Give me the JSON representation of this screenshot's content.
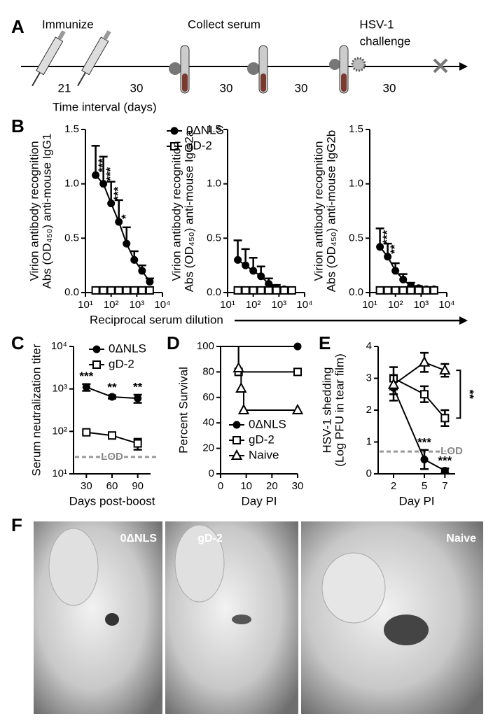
{
  "figure": {
    "panel_letters": [
      "A",
      "B",
      "C",
      "D",
      "E",
      "F"
    ],
    "reciprocal_label": "Reciprocal serum dilution"
  },
  "timeline": {
    "steps": [
      "Immunize",
      "Collect serum"
    ],
    "challenge": [
      "HSV-1",
      "challenge"
    ],
    "intervals": [
      21,
      30,
      30,
      30,
      30
    ],
    "axis_label": "Time interval (days)"
  },
  "chart_data": [
    {
      "type": "line",
      "xlog": true,
      "x": [
        25,
        50,
        100,
        200,
        400,
        800,
        1600,
        3200
      ],
      "xlim": [
        10,
        10000
      ],
      "xticks": [
        {
          "value": 10,
          "label": "10¹"
        },
        {
          "value": 100,
          "label": "10²"
        },
        {
          "value": 1000,
          "label": "10³"
        },
        {
          "value": 10000,
          "label": "10⁴"
        }
      ],
      "ylim": [
        0,
        1.5
      ],
      "yticks": [
        {
          "value": 0,
          "label": "0.0"
        },
        0.5,
        {
          "value": 1,
          "label": "1.0"
        },
        1.5
      ],
      "ylabel": [
        "Virion antibody recognition",
        "Abs (OD₄₅₀) anti-mouse IgG1"
      ],
      "legend": "top-right",
      "error_style": "up",
      "series": [
        {
          "name": "0ΔNLS",
          "marker": "circle",
          "color": "#000000",
          "values": [
            1.08,
            1.0,
            0.82,
            0.65,
            0.45,
            0.3,
            0.2,
            0.1
          ],
          "errors": [
            0.27,
            0.25,
            0.2,
            0.2,
            0.15,
            0.08,
            0.05,
            0.03
          ],
          "stars": [
            "***",
            "***",
            "***",
            "*",
            null,
            null,
            null,
            null
          ]
        },
        {
          "name": "gD-2",
          "marker": "square",
          "color": "#000000",
          "values": [
            0.02,
            0.02,
            0.02,
            0.02,
            0.02,
            0.02,
            0.02,
            0.02
          ]
        }
      ]
    },
    {
      "type": "line",
      "xlog": true,
      "x": [
        25,
        50,
        100,
        200,
        400,
        800,
        1600,
        3200
      ],
      "xlim": [
        10,
        10000
      ],
      "xticks": [
        {
          "value": 10,
          "label": "10¹"
        },
        {
          "value": 100,
          "label": "10²"
        },
        {
          "value": 1000,
          "label": "10³"
        },
        {
          "value": 10000,
          "label": "10⁴"
        }
      ],
      "ylim": [
        0,
        1.5
      ],
      "yticks": [
        {
          "value": 0,
          "label": "0.0"
        },
        0.5,
        {
          "value": 1,
          "label": "1.0"
        },
        1.5
      ],
      "ylabel": [
        "Virion antibody recognition",
        "Abs (OD₄₅₀) anti-mouse IgG2a"
      ],
      "error_style": "up",
      "series": [
        {
          "marker": "circle",
          "color": "#000000",
          "values": [
            0.3,
            0.25,
            0.2,
            0.15,
            0.08,
            0.04,
            0.03,
            0.02
          ],
          "errors": [
            0.18,
            0.15,
            0.12,
            0.09,
            0.05,
            0.03,
            0.02,
            0.01
          ]
        },
        {
          "marker": "square",
          "color": "#000000",
          "values": [
            0.02,
            0.02,
            0.02,
            0.02,
            0.02,
            0.02,
            0.02,
            0.02
          ]
        }
      ]
    },
    {
      "type": "line",
      "xlog": true,
      "x": [
        25,
        50,
        100,
        200,
        400,
        800,
        1600,
        3200
      ],
      "xlim": [
        10,
        10000
      ],
      "xticks": [
        {
          "value": 10,
          "label": "10¹"
        },
        {
          "value": 100,
          "label": "10²"
        },
        {
          "value": 1000,
          "label": "10³"
        },
        {
          "value": 10000,
          "label": "10⁴"
        }
      ],
      "ylim": [
        0,
        1.5
      ],
      "yticks": [
        {
          "value": 0,
          "label": "0.0"
        },
        0.5,
        {
          "value": 1,
          "label": "1.0"
        },
        1.5
      ],
      "ylabel": [
        "Virion antibody recognition",
        "Abs (OD₄₅₀) anti-mouse IgG2b"
      ],
      "error_style": "up",
      "series": [
        {
          "marker": "circle",
          "color": "#000000",
          "values": [
            0.42,
            0.33,
            0.2,
            0.12,
            0.06,
            0.04,
            0.03,
            0.03
          ],
          "errors": [
            0.17,
            0.12,
            0.07,
            0.05,
            0.03,
            0.02,
            0.01,
            0.01
          ],
          "stars": [
            "***",
            "**",
            null,
            null,
            null,
            null,
            null,
            null
          ]
        },
        {
          "marker": "square",
          "color": "#000000",
          "values": [
            0.02,
            0.02,
            0.02,
            0.02,
            0.02,
            0.02,
            0.02,
            0.02
          ]
        }
      ]
    },
    {
      "type": "line",
      "ylog": true,
      "x": [
        30,
        60,
        90
      ],
      "xlim": [
        15,
        105
      ],
      "xticks": [
        30,
        60,
        90
      ],
      "ylim": [
        10,
        10000
      ],
      "yticks": [
        {
          "value": 10,
          "label": "10¹"
        },
        {
          "value": 100,
          "label": "10²"
        },
        {
          "value": 1000,
          "label": "10³"
        },
        {
          "value": 10000,
          "label": "10⁴"
        }
      ],
      "ylabel": [
        "Serum neutralization titer"
      ],
      "xlabel": "Days post-boost",
      "legend": "top-left",
      "lod": 25,
      "lod_label": "LOD",
      "error_style": "both",
      "series": [
        {
          "name": "0ΔNLS",
          "marker": "circle",
          "color": "#000000",
          "values": [
            1100,
            650,
            600
          ],
          "errors": [
            200,
            60,
            130
          ],
          "stars": [
            "***",
            "**",
            "**"
          ]
        },
        {
          "name": "gD-2",
          "marker": "square",
          "color": "#000000",
          "values": [
            95,
            80,
            52
          ],
          "errors": [
            8,
            10,
            15
          ]
        }
      ]
    },
    {
      "type": "step",
      "xlim": [
        0,
        30
      ],
      "xticks": [
        0,
        10,
        20,
        30
      ],
      "ylim": [
        0,
        100
      ],
      "yticks": [
        0,
        20,
        40,
        60,
        80,
        100
      ],
      "ylabel": [
        "Percent Survival"
      ],
      "xlabel": "Day PI",
      "legend": "bottom-right",
      "series": [
        {
          "name": "0ΔNLS",
          "marker": "circle",
          "color": "#000000",
          "x": [
            0,
            30
          ],
          "values": [
            100,
            100
          ]
        },
        {
          "name": "gD-2",
          "marker": "square",
          "color": "#000000",
          "x": [
            0,
            7,
            30
          ],
          "values": [
            100,
            80,
            80
          ]
        },
        {
          "name": "Naive",
          "marker": "triangle",
          "color": "#000000",
          "x": [
            0,
            7,
            8,
            9,
            30
          ],
          "values": [
            100,
            83,
            67,
            50,
            50
          ]
        }
      ]
    },
    {
      "type": "line",
      "x": [
        2,
        5,
        7
      ],
      "xlim": [
        0.5,
        8
      ],
      "xticks": [
        2,
        5,
        7
      ],
      "ylim": [
        0,
        4
      ],
      "yticks": [
        0,
        1,
        2,
        3,
        4
      ],
      "ylabel": [
        "HSV-1 shedding",
        "(Log PFU in tear film)"
      ],
      "xlabel": "Day PI",
      "lod": 0.7,
      "lod_label": "LOD",
      "error_style": "both",
      "bracket_label": "**",
      "series": [
        {
          "marker": "circle",
          "color": "#000000",
          "values": [
            2.7,
            0.45,
            0.1
          ],
          "errors": [
            0.4,
            0.3,
            0.07
          ],
          "stars": [
            null,
            "***",
            "***"
          ]
        },
        {
          "marker": "square",
          "color": "#000000",
          "values": [
            3.0,
            2.5,
            1.75
          ],
          "errors": [
            0.35,
            0.25,
            0.25
          ]
        },
        {
          "marker": "triangle",
          "color": "#000000",
          "values": [
            2.8,
            3.5,
            3.25
          ],
          "errors": [
            0.3,
            0.3,
            0.2
          ]
        }
      ]
    }
  ],
  "photos": {
    "labels": [
      "0ΔNLS",
      "gD-2",
      "Naive"
    ]
  }
}
